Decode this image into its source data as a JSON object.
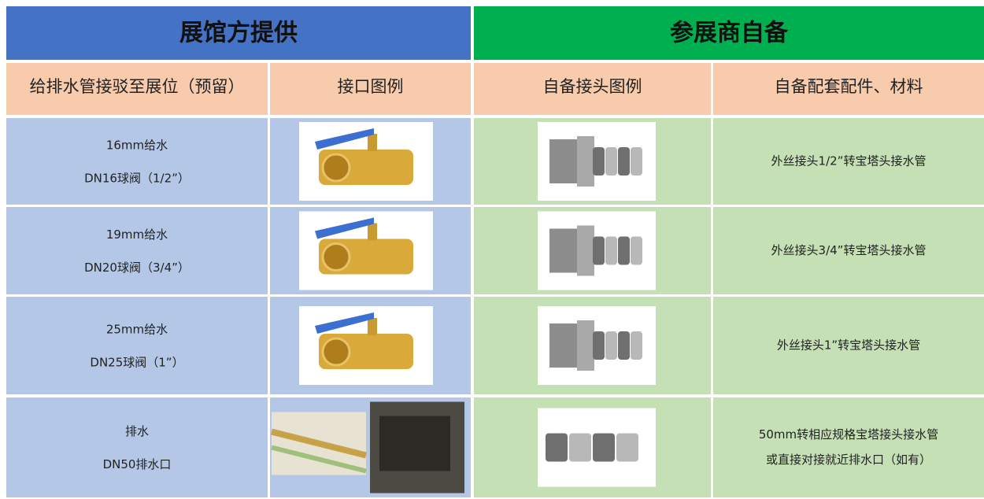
{
  "header": {
    "left": "展馆方提供",
    "right": "参展商自备"
  },
  "table": {
    "columns": [
      "给排水管接驳至展位（预留）",
      "接口图例",
      "自备接头图例",
      "自备配套配件、材料"
    ],
    "rows": [
      {
        "supply": [
          "16mm给水",
          "DN16球阀（1/2”）"
        ],
        "materials": [
          "外丝接头1/2”转宝塔头接水管"
        ]
      },
      {
        "supply": [
          "19mm给水",
          "DN20球阀（3/4”）"
        ],
        "materials": [
          "外丝接头3/4”转宝塔头接水管"
        ]
      },
      {
        "supply": [
          "25mm给水",
          "DN25球阀（1”）"
        ],
        "materials": [
          "外丝接头1”转宝塔头接水管"
        ]
      },
      {
        "supply": [
          "排水",
          "DN50排水口"
        ],
        "materials": [
          "50mm转相应规格宝塔接头接水管",
          "或直接对接就近排水口（如有）"
        ]
      }
    ]
  }
}
